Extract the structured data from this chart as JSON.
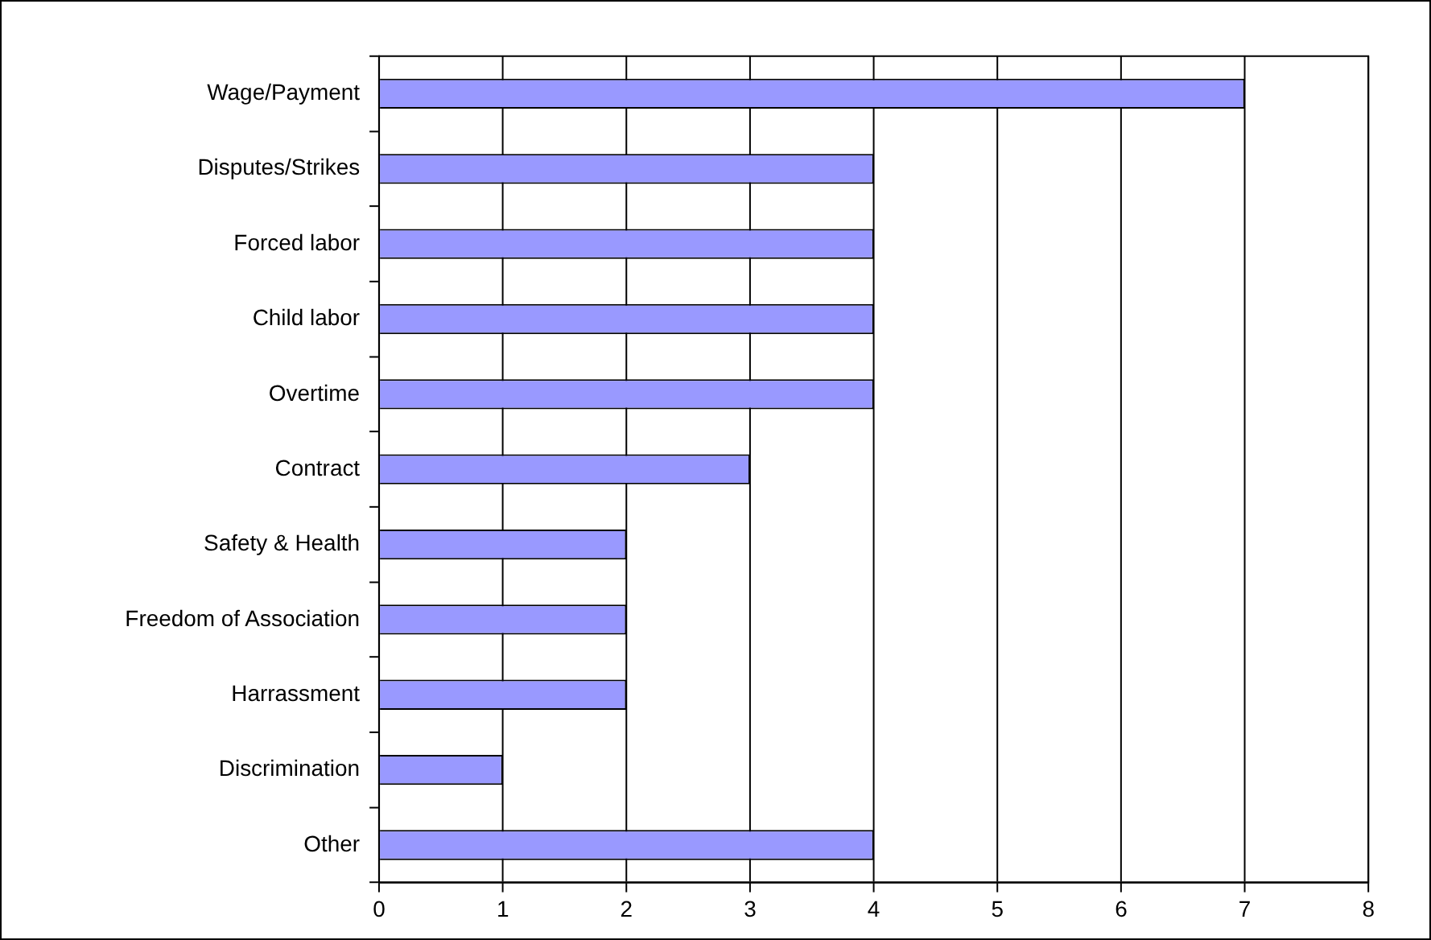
{
  "chart_data": {
    "type": "bar",
    "orientation": "horizontal",
    "categories": [
      "Wage/Payment",
      "Disputes/Strikes",
      "Forced labor",
      "Child labor",
      "Overtime",
      "Contract",
      "Safety & Health",
      "Freedom of Association",
      "Harrassment",
      "Discrimination",
      "Other"
    ],
    "values": [
      7,
      4,
      4,
      4,
      4,
      3,
      2,
      2,
      2,
      1,
      4
    ],
    "color": "#9999ff",
    "xlim": [
      0,
      8
    ],
    "xticks": [
      0,
      1,
      2,
      3,
      4,
      5,
      6,
      7,
      8
    ],
    "grid": "x",
    "legend": false
  }
}
